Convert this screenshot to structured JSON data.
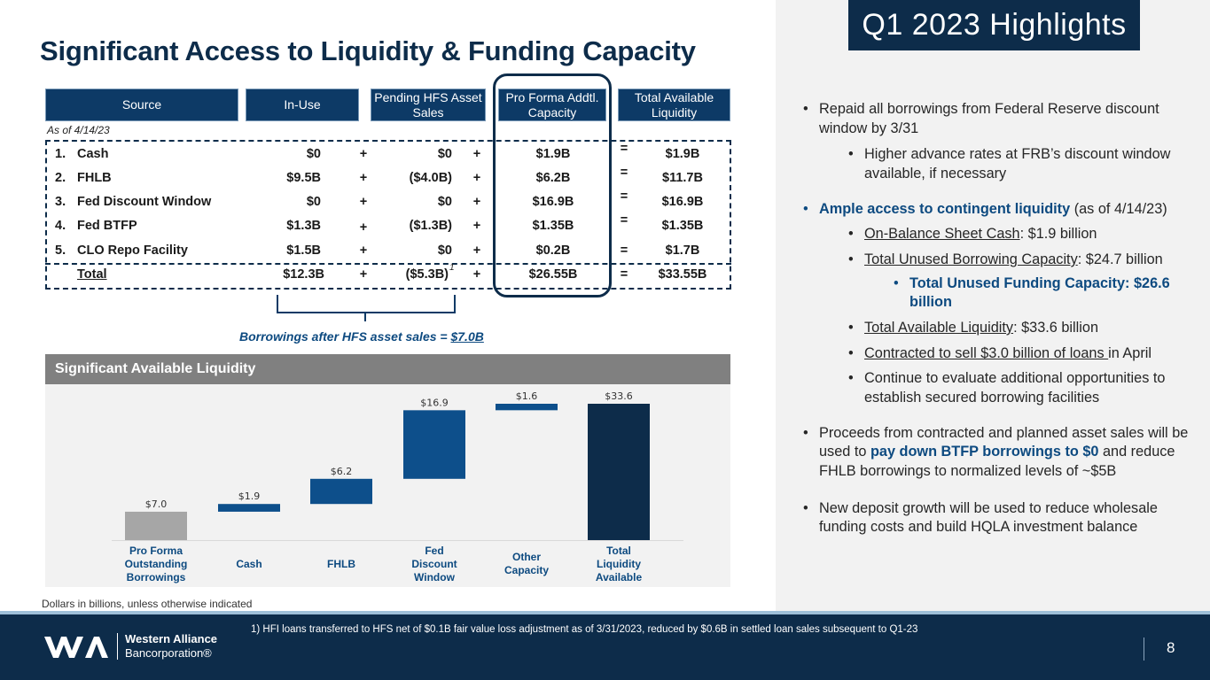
{
  "header": {
    "title": "Significant Access to Liquidity & Funding Capacity",
    "highlights_title": "Q1 2023 Highlights"
  },
  "table": {
    "columns": [
      "Source",
      "In-Use",
      "Pending HFS Asset Sales",
      "Pro Forma Addtl. Capacity",
      "Total Available Liquidity"
    ],
    "as_of": "As of 4/14/23",
    "rows": [
      {
        "num": "1.",
        "source": "Cash",
        "in_use": "$0",
        "op1": "+",
        "pending": "$0",
        "op2": "+",
        "pro_forma": "$1.9B",
        "op3": "=",
        "total": "$1.9B"
      },
      {
        "num": "2.",
        "source": "FHLB",
        "in_use": "$9.5B",
        "op1": "+",
        "pending": "($4.0B)",
        "op2": "+",
        "pro_forma": "$6.2B",
        "op3": "=",
        "total": "$11.7B"
      },
      {
        "num": "3.",
        "source": "Fed Discount Window",
        "in_use": "$0",
        "op1": "+",
        "pending": "$0",
        "op2": "+",
        "pro_forma": "$16.9B",
        "op3": "=",
        "total": "$16.9B"
      },
      {
        "num": "4.",
        "source": "Fed BTFP",
        "in_use": "$1.3B",
        "op1": "+",
        "pending": "($1.3B)",
        "op2": "+",
        "pro_forma": "$1.35B",
        "op3": "=",
        "total": "$1.35B"
      },
      {
        "num": "5.",
        "source": "CLO Repo Facility",
        "in_use": "$1.5B",
        "op1": "+",
        "pending": "$0",
        "op2": "+",
        "pro_forma": "$0.2B",
        "op3": "=",
        "total": "$1.7B"
      }
    ],
    "total_row": {
      "source": "Total",
      "in_use": "$12.3B",
      "op1": "+",
      "pending": "($5.3B)",
      "pending_sup": "1",
      "op2": "+",
      "pro_forma": "$26.55B",
      "op3": "=",
      "total": "$33.55B"
    },
    "borrowings_note_prefix": "Borrowings after HFS asset sales = ",
    "borrowings_note_value": "$7.0B"
  },
  "chart_section": {
    "title": "Significant Available Liquidity"
  },
  "chart_data": {
    "type": "bar",
    "subtype": "waterfall",
    "title": "Significant Available Liquidity",
    "categories": [
      "Pro Forma Outstanding Borrowings",
      "Cash",
      "FHLB",
      "Fed Discount Window",
      "Other Capacity",
      "Total Liquidity Available"
    ],
    "category_lines": [
      [
        "Pro Forma",
        "Outstanding",
        "Borrowings"
      ],
      [
        "Cash"
      ],
      [
        "FHLB"
      ],
      [
        "Fed",
        "Discount",
        "Window"
      ],
      [
        "Other",
        "Capacity"
      ],
      [
        "Total",
        "Liquidity",
        "Available"
      ]
    ],
    "values": [
      7.0,
      1.9,
      6.2,
      16.9,
      1.6,
      33.6
    ],
    "labels": [
      "$7.0",
      "$1.9",
      "$6.2",
      "$16.9",
      "$1.6",
      "$33.6"
    ],
    "bases": [
      0,
      7.0,
      8.9,
      15.1,
      32.0,
      0
    ],
    "ylim": [
      0,
      35
    ],
    "colors": {
      "start": "#a6a6a6",
      "step": "#0d4f8b",
      "total": "#0d2c4a"
    }
  },
  "bullets": {
    "b1": "Repaid all borrowings from Federal Reserve discount window by 3/31",
    "b1_sub": "Higher advance rates at FRB’s discount window available, if necessary",
    "b2_bold": "Ample access to contingent liquidity",
    "b2_rest": " (as of 4/14/23)",
    "b2_s1_u": "On-Balance Sheet Cash",
    "b2_s1_rest": ": $1.9 billion",
    "b2_s2_u": "Total Unused Borrowing Capacity",
    "b2_s2_rest": ": $24.7 billion",
    "b2_s2_sub": "Total Unused Funding Capacity: $26.6 billion",
    "b2_s3_u": "Total Available Liquidity",
    "b2_s3_rest": ": $33.6 billion",
    "b2_s4_u": "Contracted to sell $3.0 billion of loans ",
    "b2_s4_rest": "in April",
    "b2_s5": "Continue to evaluate additional opportunities to establish secured borrowing facilities",
    "b3_a": "Proceeds from contracted and planned asset sales will be used to ",
    "b3_bold": "pay down BTFP borrowings to $0",
    "b3_b": " and reduce FHLB borrowings to normalized levels of ~$5B",
    "b4": "New deposit growth will be used to reduce wholesale funding costs and build HQLA investment balance"
  },
  "notes": {
    "dollars": "Dollars in billions, unless otherwise indicated",
    "footnote": "1)  HFI loans transferred to HFS net of $0.1B fair value loss adjustment as of 3/31/2023, reduced by $0.6B in settled loan sales subsequent to Q1-23"
  },
  "footer": {
    "logo_line1": "Western Alliance",
    "logo_line2": "Bancorporation®",
    "page_number": "8"
  },
  "colors": {
    "navy": "#0d2c4a",
    "header_blue": "#0d3a66",
    "accent_blue": "#0d4a80"
  }
}
